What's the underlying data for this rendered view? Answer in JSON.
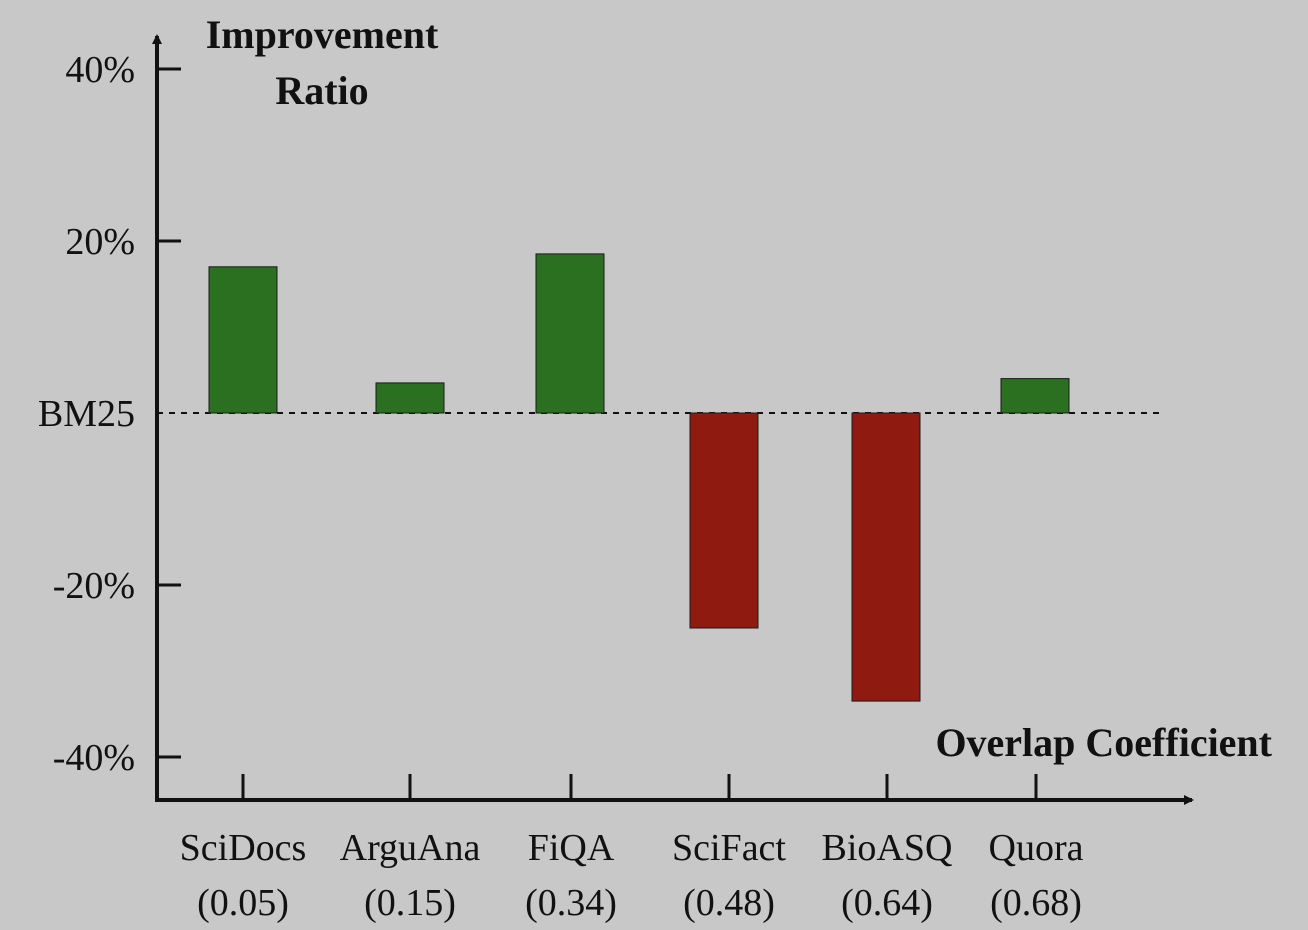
{
  "chart_data": {
    "type": "bar",
    "title": "",
    "ylabel_lines": [
      "Improvement",
      "Ratio"
    ],
    "xlabel": "Overlap Coefficient",
    "baseline_label": "BM25",
    "yticks": [
      {
        "value": 40,
        "label": "40%"
      },
      {
        "value": 20,
        "label": "20%"
      },
      {
        "value": -20,
        "label": "-20%"
      },
      {
        "value": -40,
        "label": "-40%"
      }
    ],
    "ylim": [
      -45,
      47
    ],
    "categories": [
      {
        "name": "SciDocs",
        "overlap": "(0.05)"
      },
      {
        "name": "ArguAna",
        "overlap": "(0.15)"
      },
      {
        "name": "FiQA",
        "overlap": "(0.34)"
      },
      {
        "name": "SciFact",
        "overlap": "(0.48)"
      },
      {
        "name": "BioASQ",
        "overlap": "(0.64)"
      },
      {
        "name": "Quora",
        "overlap": "(0.68)"
      }
    ],
    "values": [
      17,
      3.5,
      18.5,
      -25,
      -33.5,
      4
    ],
    "colors": {
      "positive": "#2a7020",
      "negative": "#8e1a10",
      "axis": "#111111"
    },
    "grid": false,
    "legend": "none"
  }
}
